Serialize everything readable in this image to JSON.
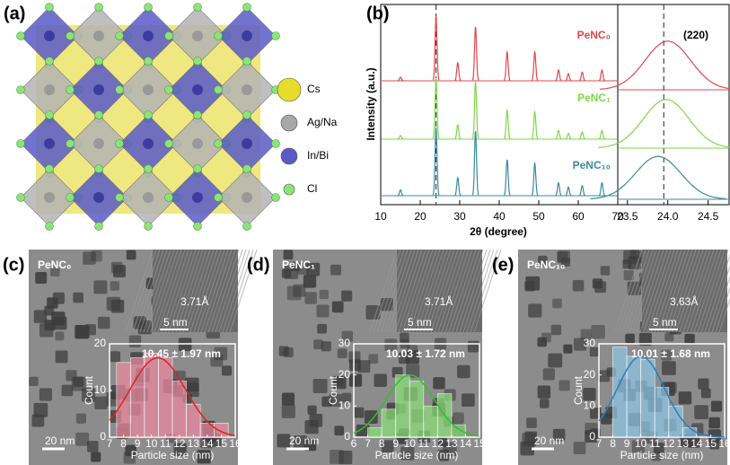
{
  "structure": {
    "label": "(a)",
    "legend": [
      {
        "name": "Cs",
        "color": "#e6dc2a"
      },
      {
        "name": "Ag/Na",
        "color": "#a8a8a8"
      },
      {
        "name": "In/Bi",
        "color": "#5a5ac8"
      },
      {
        "name": "Cl",
        "color": "#8ee27a"
      }
    ]
  },
  "chart_data": [
    {
      "type": "peaks",
      "label": "(b)",
      "xlabel": "2θ (degree)",
      "ylabel": "Intensity (a.u.)",
      "xlim": [
        10,
        70
      ],
      "xticks": [
        10,
        20,
        30,
        40,
        50,
        60,
        70
      ],
      "marker_x": 24,
      "series": [
        {
          "name": "PeNC₀",
          "color": "#e0474c",
          "x": [
            15,
            24,
            29.5,
            34,
            42,
            49,
            55,
            57.5,
            61,
            66
          ],
          "values": [
            5,
            90,
            25,
            75,
            40,
            40,
            15,
            10,
            12,
            15
          ]
        },
        {
          "name": "PeNC₁",
          "color": "#7fd64a",
          "x": [
            15,
            24,
            29.5,
            34,
            42,
            49,
            55,
            57.5,
            61,
            66
          ],
          "values": [
            5,
            85,
            20,
            80,
            40,
            38,
            12,
            8,
            10,
            12
          ]
        },
        {
          "name": "PeNC₁₀",
          "color": "#3a8aa0",
          "x": [
            15,
            24,
            29.5,
            34,
            42,
            49,
            55,
            57.5,
            61,
            66
          ],
          "values": [
            8,
            95,
            25,
            90,
            50,
            45,
            18,
            12,
            14,
            18
          ]
        }
      ]
    },
    {
      "type": "zoom",
      "annotation": "(220)",
      "xlim": [
        23.38,
        24.76
      ],
      "xticks": [
        23.5,
        {
          "value": 24,
          "label": "24.0"
        },
        24.5
      ],
      "marker_x": 23.95,
      "series": [
        {
          "color": "#e0474c",
          "x": [
            24.0
          ],
          "values": [
            68
          ]
        },
        {
          "color": "#7fd64a",
          "x": [
            23.98
          ],
          "values": [
            68
          ]
        },
        {
          "color": "#3a8aa0",
          "x": [
            23.88
          ],
          "values": [
            60
          ]
        }
      ]
    },
    {
      "type": "histogram",
      "label": "(c)",
      "sample": "PeNC₀",
      "lattice": "3.71Å",
      "hrtem_scale": "5 nm",
      "tem_scale": "20 nm",
      "xlabel": "Particle size (nm)",
      "ylabel": "Count",
      "color": "#f08aa0",
      "fit_color": "#e02020",
      "xlim": [
        7,
        16
      ],
      "ylim": [
        0,
        20
      ],
      "xticks": [
        7,
        8,
        9,
        10,
        11,
        12,
        13,
        14,
        15,
        16
      ],
      "yticks": [
        0,
        10,
        20
      ],
      "bins": [
        7.5,
        8.5,
        9.5,
        10.5,
        11.5,
        12.5,
        13.5,
        14.5,
        15.5
      ],
      "values": [
        16,
        17,
        18,
        17,
        12,
        7,
        3,
        3
      ],
      "fit": {
        "mean": 10.45,
        "sd": 1.97,
        "height": 17,
        "label": "10.45 ± 1.97 nm"
      }
    },
    {
      "type": "histogram",
      "label": "(d)",
      "sample": "PeNC₁",
      "lattice": "3.71Å",
      "hrtem_scale": "5 nm",
      "tem_scale": "20 nm",
      "xlabel": "Particle size (nm)",
      "ylabel": "Count",
      "color": "#8ee27a",
      "fit_color": "#30c030",
      "xlim": [
        6,
        15
      ],
      "ylim": [
        0,
        30
      ],
      "xticks": [
        6,
        7,
        8,
        9,
        10,
        11,
        12,
        13,
        14,
        15
      ],
      "yticks": [
        0,
        10,
        20,
        30
      ],
      "bins": [
        7,
        8,
        9,
        10,
        11,
        12,
        13,
        14
      ],
      "values": [
        3,
        9,
        20,
        18,
        10,
        14,
        4
      ],
      "fit": {
        "mean": 10.03,
        "sd": 1.72,
        "height": 20,
        "label": "10.03 ± 1.72 nm"
      }
    },
    {
      "type": "histogram",
      "label": "(e)",
      "sample": "PeNC₁₀",
      "lattice": "3.63Å",
      "hrtem_scale": "5 nm",
      "tem_scale": "20 nm",
      "xlabel": "Particle size (nm)",
      "ylabel": "Count",
      "color": "#8ec8e8",
      "fit_color": "#2a80c0",
      "xlim": [
        7,
        16
      ],
      "ylim": [
        0,
        30
      ],
      "xticks": [
        7,
        8,
        9,
        10,
        11,
        12,
        13,
        14,
        15,
        16
      ],
      "yticks": [
        0,
        10,
        20,
        30
      ],
      "bins": [
        8,
        9,
        10,
        11,
        12,
        13,
        14
      ],
      "values": [
        29,
        26,
        25,
        16,
        10,
        3
      ],
      "fit": {
        "mean": 10.01,
        "sd": 1.68,
        "height": 26,
        "label": "10.01 ± 1.68 nm"
      }
    }
  ]
}
